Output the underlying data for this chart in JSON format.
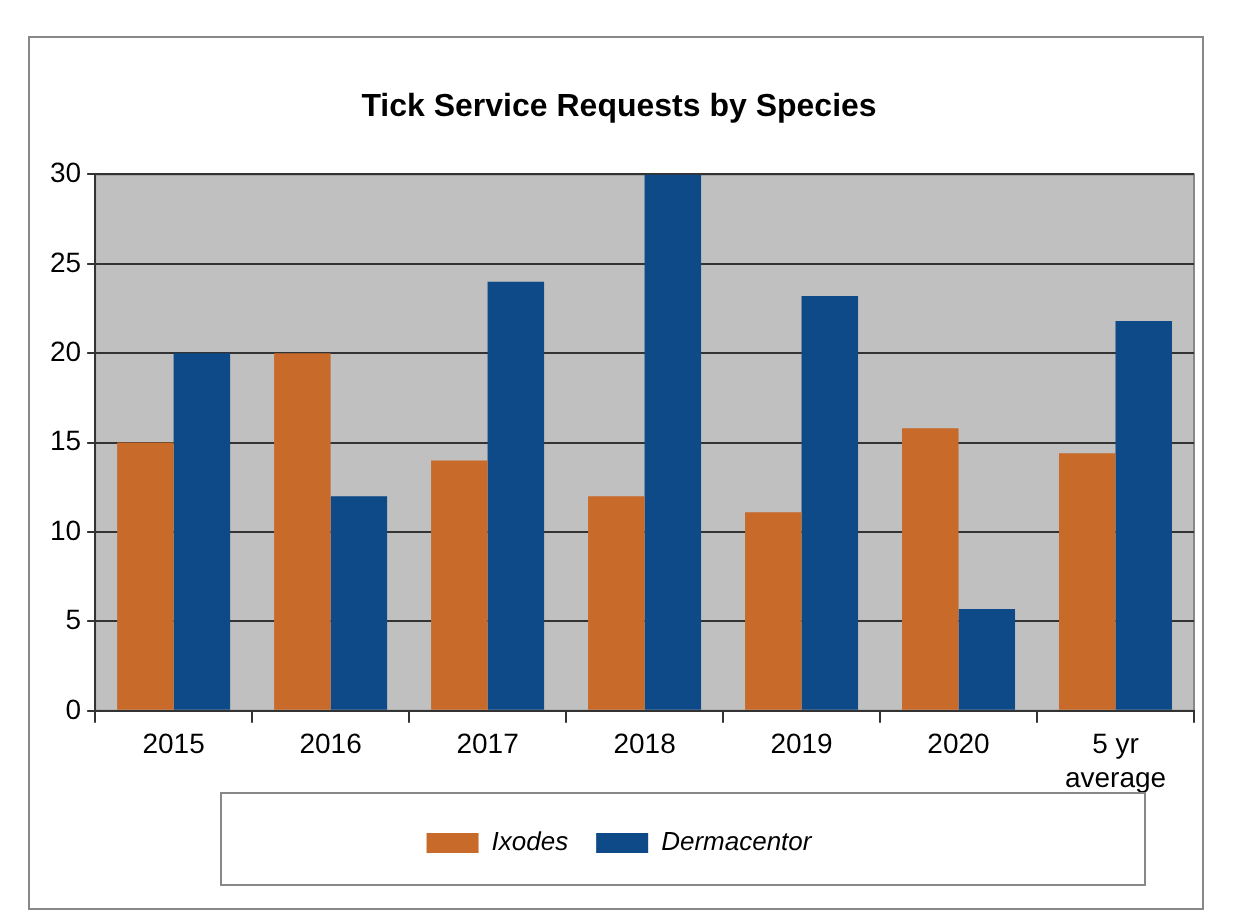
{
  "chart_data": {
    "type": "bar",
    "title": "Tick Service Requests by Species",
    "categories": [
      "2015",
      "2016",
      "2017",
      "2018",
      "2019",
      "2020",
      "5 yr\naverage"
    ],
    "series": [
      {
        "name": "Ixodes",
        "color": "#c86a2a",
        "values": [
          15,
          20,
          14,
          12,
          11.1,
          15.8,
          14.4
        ]
      },
      {
        "name": "Dermacentor",
        "color": "#0f4a88",
        "values": [
          20,
          12,
          24,
          30,
          23.2,
          5.7,
          21.8
        ]
      }
    ],
    "ylim": [
      0,
      30
    ],
    "yticks": [
      0,
      5,
      10,
      15,
      20,
      25,
      30
    ],
    "grid": "y",
    "legend": "bottom"
  }
}
